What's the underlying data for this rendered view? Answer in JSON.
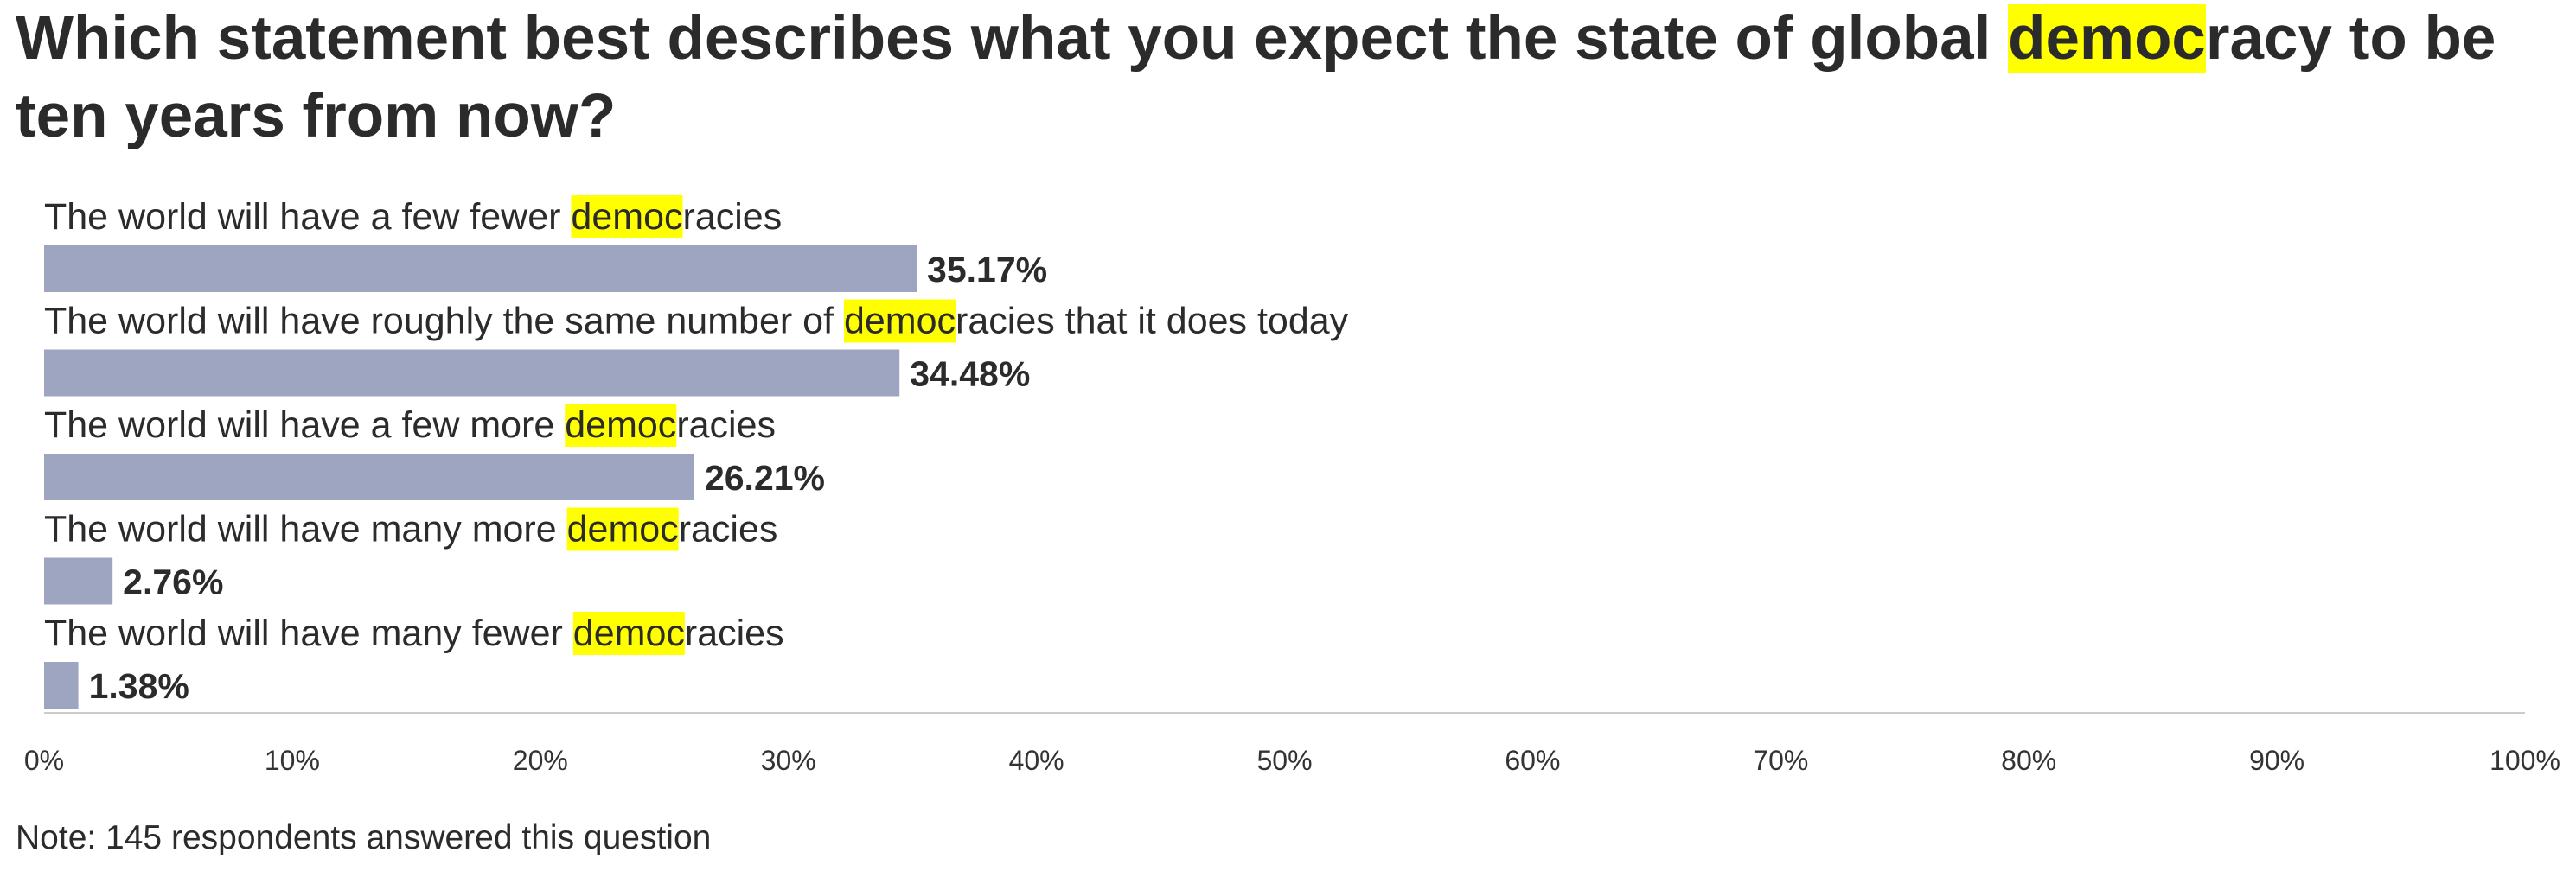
{
  "title": {
    "before": "Which statement best describes what you expect the state of global ",
    "highlight": "democ",
    "after": "racy to be ten years from now?"
  },
  "highlight_term": "democ",
  "colors": {
    "bar": "#9ea5c1",
    "highlight": "#ffff00",
    "text": "#2b2b2b",
    "axis": "#cccccc"
  },
  "chart_data": {
    "type": "bar",
    "orientation": "horizontal",
    "categories": [
      "The world will have a few fewer democracies",
      "The world will have roughly the same number of democracies that it does today",
      "The world will have a few more democracies",
      "The world will have many more democracies",
      "The world will have many fewer democracies"
    ],
    "values": [
      35.17,
      34.48,
      26.21,
      2.76,
      1.38
    ],
    "value_labels": [
      "35.17%",
      "34.48%",
      "26.21%",
      "2.76%",
      "1.38%"
    ],
    "xlim": [
      0,
      100
    ],
    "xticks": [
      0,
      10,
      20,
      30,
      40,
      50,
      60,
      70,
      80,
      90,
      100
    ],
    "xtick_labels": [
      "0%",
      "10%",
      "20%",
      "30%",
      "40%",
      "50%",
      "60%",
      "70%",
      "80%",
      "90%",
      "100%"
    ],
    "grid": false,
    "legend": "none"
  },
  "note": "Note: 145 respondents answered this question"
}
